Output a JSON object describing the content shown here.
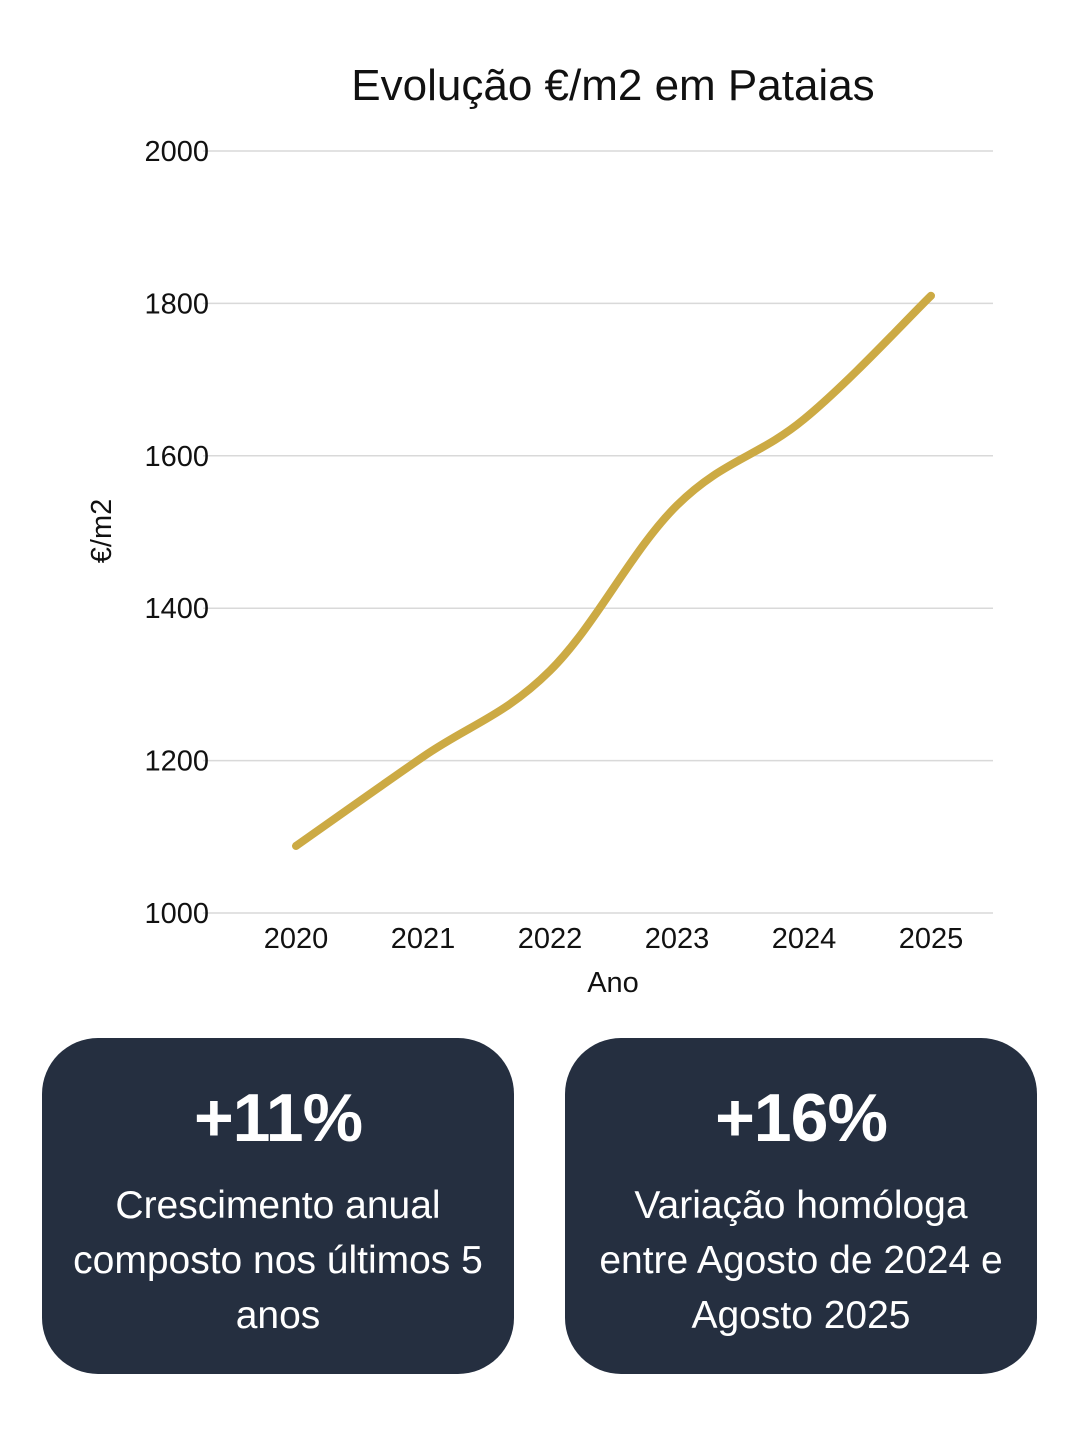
{
  "chart_data": {
    "type": "line",
    "title": "Evolução €/m2 em Pataias",
    "xlabel": "Ano",
    "ylabel": "€/m2",
    "categories": [
      "2020",
      "2021",
      "2022",
      "2023",
      "2024",
      "2025"
    ],
    "series": [
      {
        "values": [
          1088,
          1205,
          1318,
          1535,
          1648,
          1810
        ]
      }
    ],
    "ylim": [
      1000,
      2000
    ],
    "yticks": [
      1000,
      1200,
      1400,
      1600,
      1800,
      2000
    ],
    "grid": true,
    "line_color": "#ccaa44"
  },
  "cards": [
    {
      "value": "+11%",
      "description": "Crescimento anual composto nos últimos 5 anos"
    },
    {
      "value": "+16%",
      "description": "Variação homóloga entre Agosto de 2024 e Agosto 2025"
    }
  ],
  "colors": {
    "card_background": "#252f40",
    "card_text": "#ffffff",
    "gridline": "#d9d9d9"
  }
}
